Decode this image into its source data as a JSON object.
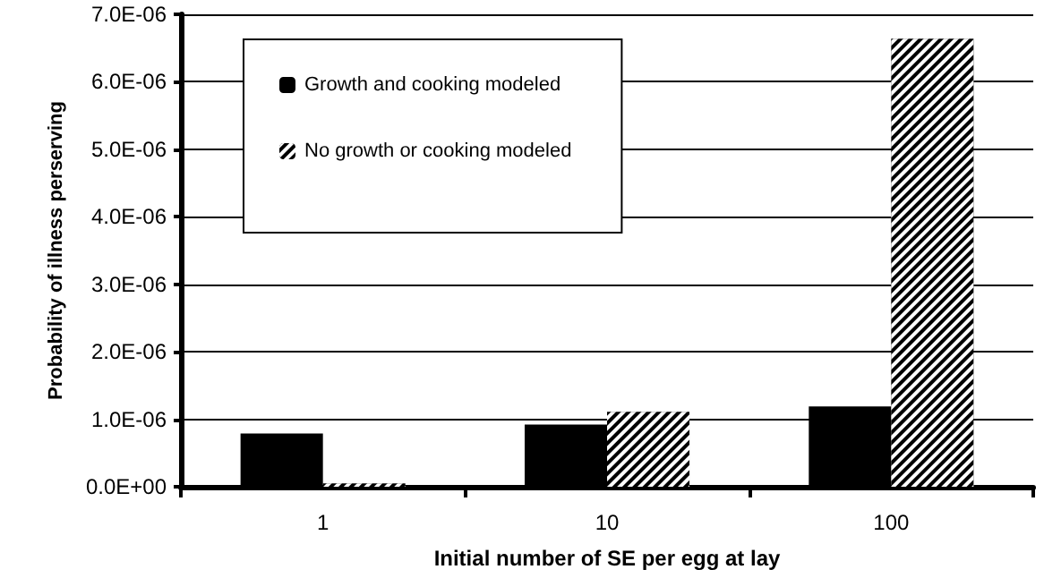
{
  "chart_data": {
    "type": "bar",
    "xlabel": "Initial number of SE per egg at lay",
    "ylabel": "Probability of illness perserving",
    "categories": [
      "1",
      "10",
      "100"
    ],
    "series": [
      {
        "name": "Growth and cooking modeled",
        "color": "#000000",
        "values": [
          7.9e-07,
          9.2e-07,
          1.19e-06
        ]
      },
      {
        "name": "No growth or cooking modeled",
        "color": "#000000",
        "values": [
          5e-08,
          1.11e-06,
          6.64e-06
        ]
      }
    ],
    "ylim": [
      0,
      7e-06
    ],
    "yticks": [
      {
        "value": 0,
        "label": "0.0E+00"
      },
      {
        "value": 1e-06,
        "label": "1.0E-06"
      },
      {
        "value": 2e-06,
        "label": "2.0E-06"
      },
      {
        "value": 3e-06,
        "label": "3.0E-06"
      },
      {
        "value": 4e-06,
        "label": "4.0E-06"
      },
      {
        "value": 5e-06,
        "label": "5.0E-06"
      },
      {
        "value": 6e-06,
        "label": "6.0E-06"
      },
      {
        "value": 7e-06,
        "label": "7.0E-06"
      }
    ],
    "grid": "y",
    "legend": "top left"
  }
}
